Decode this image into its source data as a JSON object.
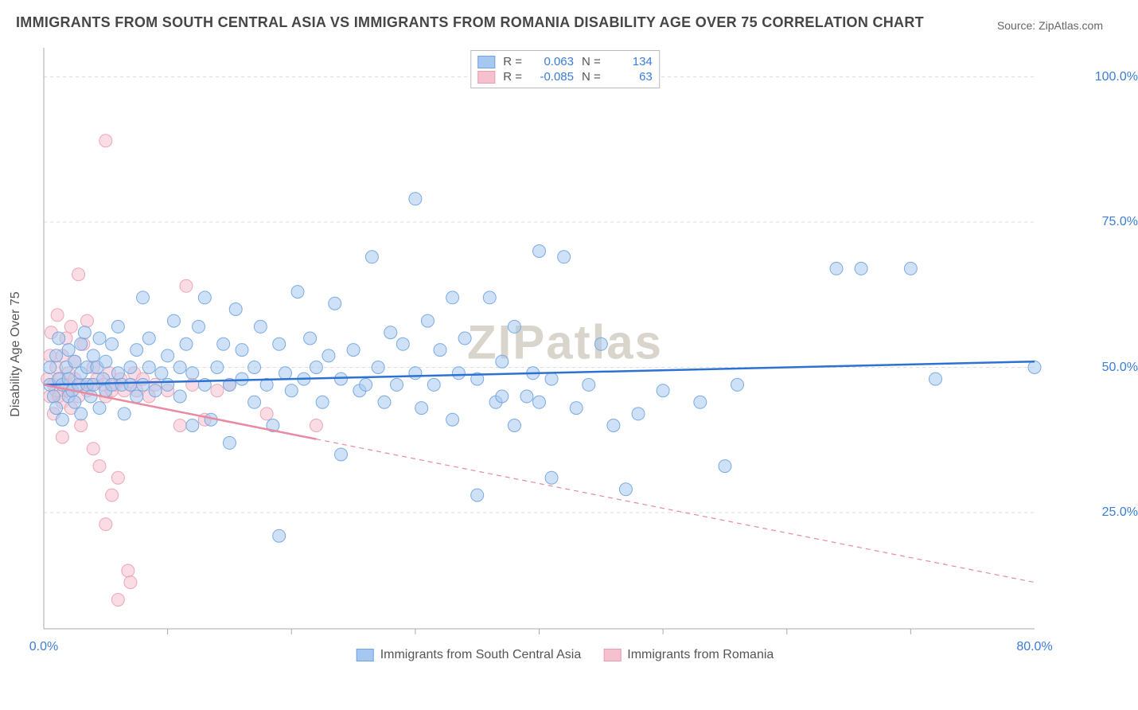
{
  "title": "IMMIGRANTS FROM SOUTH CENTRAL ASIA VS IMMIGRANTS FROM ROMANIA DISABILITY AGE OVER 75 CORRELATION CHART",
  "source": "Source: ZipAtlas.com",
  "watermark": "ZIPatlas",
  "chart": {
    "type": "scatter",
    "y_axis_label": "Disability Age Over 75",
    "xlim": [
      0,
      80
    ],
    "ylim": [
      5,
      105
    ],
    "x_ticks": [
      0,
      80
    ],
    "x_tick_labels": [
      "0.0%",
      "80.0%"
    ],
    "y_ticks": [
      25,
      50,
      75,
      100
    ],
    "y_tick_labels": [
      "25.0%",
      "50.0%",
      "75.0%",
      "100.0%"
    ],
    "minor_x_ticks": [
      10,
      20,
      30,
      40,
      50,
      60,
      70
    ],
    "grid_color": "#dddddd",
    "axis_color": "#aaaaaa",
    "background_color": "#ffffff",
    "marker_radius": 8,
    "marker_opacity": 0.55,
    "marker_stroke_opacity": 0.9,
    "line_width": 2.5,
    "series": [
      {
        "name": "Immigrants from South Central Asia",
        "color_fill": "#a6c8f0",
        "color_stroke": "#6fa3e0",
        "line_color": "#2d72d2",
        "R": "0.063",
        "N": "134",
        "trend": {
          "x1": 0,
          "y1": 47,
          "x2": 80,
          "y2": 51,
          "dash": false
        },
        "points": [
          [
            0.5,
            47
          ],
          [
            0.5,
            50
          ],
          [
            0.8,
            45
          ],
          [
            1,
            52
          ],
          [
            1,
            43
          ],
          [
            1.2,
            48
          ],
          [
            1.2,
            55
          ],
          [
            1.5,
            47
          ],
          [
            1.5,
            41
          ],
          [
            1.8,
            50
          ],
          [
            2,
            45
          ],
          [
            2,
            53
          ],
          [
            2,
            48
          ],
          [
            2.3,
            46
          ],
          [
            2.5,
            51
          ],
          [
            2.5,
            44
          ],
          [
            2.8,
            47
          ],
          [
            3,
            49
          ],
          [
            3,
            54
          ],
          [
            3,
            42
          ],
          [
            3.3,
            56
          ],
          [
            3.5,
            47
          ],
          [
            3.5,
            50
          ],
          [
            3.8,
            45
          ],
          [
            4,
            52
          ],
          [
            4,
            47
          ],
          [
            4.3,
            50
          ],
          [
            4.5,
            55
          ],
          [
            4.5,
            43
          ],
          [
            4.8,
            48
          ],
          [
            5,
            46
          ],
          [
            5,
            51
          ],
          [
            5.5,
            54
          ],
          [
            5.5,
            47
          ],
          [
            6,
            49
          ],
          [
            6,
            57
          ],
          [
            6.3,
            47
          ],
          [
            6.5,
            42
          ],
          [
            7,
            50
          ],
          [
            7,
            47
          ],
          [
            7.5,
            53
          ],
          [
            7.5,
            45
          ],
          [
            8,
            62
          ],
          [
            8,
            47
          ],
          [
            8.5,
            50
          ],
          [
            8.5,
            55
          ],
          [
            9,
            46
          ],
          [
            9.5,
            49
          ],
          [
            10,
            52
          ],
          [
            10,
            47
          ],
          [
            10.5,
            58
          ],
          [
            11,
            45
          ],
          [
            11,
            50
          ],
          [
            11.5,
            54
          ],
          [
            12,
            40
          ],
          [
            12,
            49
          ],
          [
            12.5,
            57
          ],
          [
            13,
            47
          ],
          [
            13,
            62
          ],
          [
            13.5,
            41
          ],
          [
            14,
            50
          ],
          [
            14.5,
            54
          ],
          [
            15,
            37
          ],
          [
            15,
            47
          ],
          [
            15.5,
            60
          ],
          [
            16,
            48
          ],
          [
            16,
            53
          ],
          [
            17,
            44
          ],
          [
            17,
            50
          ],
          [
            17.5,
            57
          ],
          [
            18,
            47
          ],
          [
            18.5,
            40
          ],
          [
            19,
            54
          ],
          [
            19,
            21
          ],
          [
            19.5,
            49
          ],
          [
            20,
            46
          ],
          [
            20.5,
            63
          ],
          [
            21,
            48
          ],
          [
            21.5,
            55
          ],
          [
            22,
            50
          ],
          [
            22.5,
            44
          ],
          [
            23,
            52
          ],
          [
            23.5,
            61
          ],
          [
            24,
            35
          ],
          [
            24,
            48
          ],
          [
            25,
            53
          ],
          [
            25.5,
            46
          ],
          [
            26,
            47
          ],
          [
            26.5,
            69
          ],
          [
            27,
            50
          ],
          [
            27.5,
            44
          ],
          [
            28,
            56
          ],
          [
            28.5,
            47
          ],
          [
            29,
            54
          ],
          [
            30,
            49
          ],
          [
            30,
            79
          ],
          [
            30.5,
            43
          ],
          [
            31,
            58
          ],
          [
            31.5,
            47
          ],
          [
            32,
            53
          ],
          [
            33,
            62
          ],
          [
            33,
            41
          ],
          [
            33.5,
            49
          ],
          [
            34,
            55
          ],
          [
            35,
            28
          ],
          [
            35,
            48
          ],
          [
            36,
            62
          ],
          [
            36.5,
            44
          ],
          [
            37,
            45
          ],
          [
            37,
            51
          ],
          [
            38,
            40
          ],
          [
            38,
            57
          ],
          [
            39,
            45
          ],
          [
            39.5,
            49
          ],
          [
            40,
            70
          ],
          [
            40,
            44
          ],
          [
            41,
            48
          ],
          [
            41,
            31
          ],
          [
            42,
            69
          ],
          [
            43,
            43
          ],
          [
            44,
            47
          ],
          [
            45,
            54
          ],
          [
            46,
            40
          ],
          [
            47,
            29
          ],
          [
            48,
            42
          ],
          [
            50,
            46
          ],
          [
            53,
            44
          ],
          [
            55,
            33
          ],
          [
            56,
            47
          ],
          [
            64,
            67
          ],
          [
            66,
            67
          ],
          [
            70,
            67
          ],
          [
            72,
            48
          ],
          [
            80,
            50
          ]
        ]
      },
      {
        "name": "Immigrants from Romania",
        "color_fill": "#f5c1ce",
        "color_stroke": "#eb9db0",
        "line_color": "#e88aa2",
        "R": "-0.085",
        "N": "63",
        "trend": {
          "x1": 0,
          "y1": 47,
          "x2": 80,
          "y2": 13,
          "dash_from": 22
        },
        "points": [
          [
            0.3,
            48
          ],
          [
            0.5,
            45
          ],
          [
            0.5,
            52
          ],
          [
            0.6,
            56
          ],
          [
            0.8,
            47
          ],
          [
            0.8,
            42
          ],
          [
            1,
            50
          ],
          [
            1,
            46
          ],
          [
            1.1,
            59
          ],
          [
            1.2,
            45
          ],
          [
            1.3,
            48
          ],
          [
            1.5,
            44
          ],
          [
            1.5,
            52
          ],
          [
            1.5,
            38
          ],
          [
            1.8,
            47
          ],
          [
            1.8,
            55
          ],
          [
            2,
            46
          ],
          [
            2,
            49
          ],
          [
            2.2,
            43
          ],
          [
            2.2,
            57
          ],
          [
            2.5,
            48
          ],
          [
            2.5,
            51
          ],
          [
            2.8,
            66
          ],
          [
            2.8,
            45
          ],
          [
            3,
            47
          ],
          [
            3,
            40
          ],
          [
            3.2,
            54
          ],
          [
            3.5,
            46
          ],
          [
            3.5,
            58
          ],
          [
            3.8,
            47
          ],
          [
            4,
            50
          ],
          [
            4,
            36
          ],
          [
            4.3,
            48
          ],
          [
            4.5,
            33
          ],
          [
            4.8,
            47
          ],
          [
            5,
            45
          ],
          [
            5,
            23
          ],
          [
            5,
            89
          ],
          [
            5.3,
            49
          ],
          [
            5.5,
            46
          ],
          [
            5.5,
            28
          ],
          [
            5.8,
            47
          ],
          [
            6,
            31
          ],
          [
            6,
            10
          ],
          [
            6.2,
            48
          ],
          [
            6.5,
            46
          ],
          [
            6.8,
            15
          ],
          [
            7,
            47
          ],
          [
            7,
            13
          ],
          [
            7.3,
            49
          ],
          [
            7.5,
            46
          ],
          [
            8,
            48
          ],
          [
            8.5,
            45
          ],
          [
            9,
            47
          ],
          [
            10,
            46
          ],
          [
            11,
            40
          ],
          [
            11.5,
            64
          ],
          [
            12,
            47
          ],
          [
            13,
            41
          ],
          [
            14,
            46
          ],
          [
            15,
            47
          ],
          [
            18,
            42
          ],
          [
            22,
            40
          ]
        ]
      }
    ]
  },
  "legend_bottom": [
    {
      "label": "Immigrants from South Central Asia",
      "fill": "#a6c8f0",
      "stroke": "#6fa3e0"
    },
    {
      "label": "Immigrants from Romania",
      "fill": "#f5c1ce",
      "stroke": "#eb9db0"
    }
  ]
}
